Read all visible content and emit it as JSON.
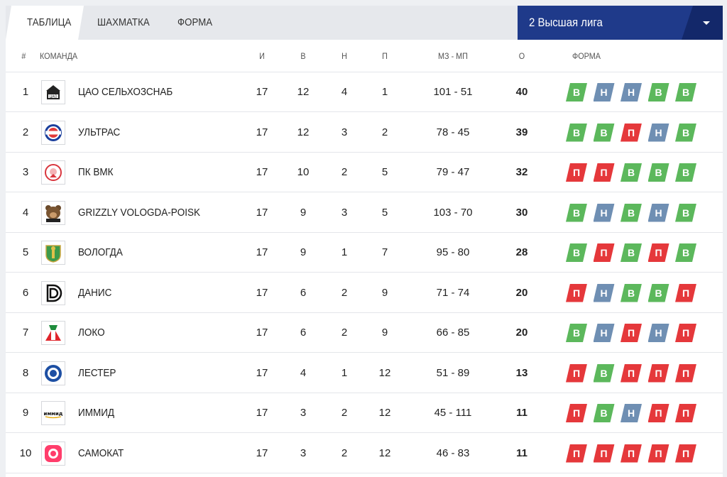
{
  "tabs": [
    "ТАБЛИЦА",
    "ШАХМАТКА",
    "ФОРМА"
  ],
  "league": {
    "label": "2 Высшая лига"
  },
  "headers": {
    "pos": "#",
    "team": "КОМАНДА",
    "i": "И",
    "w": "В",
    "d": "Н",
    "l": "П",
    "goals": "МЗ - МП",
    "pts": "О",
    "form": "ФОРМА"
  },
  "colors": {
    "win": "#5cb85c",
    "draw": "#6f8fb3",
    "loss": "#e5383b",
    "league": "#1f3a8a"
  },
  "rows": [
    {
      "pos": "1",
      "team": "ЦАО СЕЛЬХОЗСНАБ",
      "i": "17",
      "w": "12",
      "d": "4",
      "l": "1",
      "goals": "101 - 51",
      "pts": "40",
      "form": [
        "В",
        "Н",
        "Н",
        "В",
        "В"
      ],
      "logo": "cao-logo-icon"
    },
    {
      "pos": "2",
      "team": "УЛЬТРАС",
      "i": "17",
      "w": "12",
      "d": "3",
      "l": "2",
      "goals": "78 - 45",
      "pts": "39",
      "form": [
        "В",
        "В",
        "П",
        "Н",
        "В"
      ],
      "logo": "ultras-logo-icon"
    },
    {
      "pos": "3",
      "team": "ПК ВМК",
      "i": "17",
      "w": "10",
      "d": "2",
      "l": "5",
      "goals": "79 - 47",
      "pts": "32",
      "form": [
        "П",
        "П",
        "В",
        "В",
        "В"
      ],
      "logo": "pk-vmk-logo-icon"
    },
    {
      "pos": "4",
      "team": "GRIZZLY VOLOGDA-POISK",
      "i": "17",
      "w": "9",
      "d": "3",
      "l": "5",
      "goals": "103 - 70",
      "pts": "30",
      "form": [
        "В",
        "Н",
        "В",
        "Н",
        "В"
      ],
      "logo": "grizzly-logo-icon"
    },
    {
      "pos": "5",
      "team": "ВОЛОГДА",
      "i": "17",
      "w": "9",
      "d": "1",
      "l": "7",
      "goals": "95 - 80",
      "pts": "28",
      "form": [
        "В",
        "П",
        "В",
        "П",
        "В"
      ],
      "logo": "vologda-logo-icon"
    },
    {
      "pos": "6",
      "team": "ДАНИС",
      "i": "17",
      "w": "6",
      "d": "2",
      "l": "9",
      "goals": "71 - 74",
      "pts": "20",
      "form": [
        "П",
        "Н",
        "В",
        "В",
        "П"
      ],
      "logo": "danis-logo-icon"
    },
    {
      "pos": "7",
      "team": "ЛОКО",
      "i": "17",
      "w": "6",
      "d": "2",
      "l": "9",
      "goals": "66 - 85",
      "pts": "20",
      "form": [
        "В",
        "Н",
        "П",
        "Н",
        "П"
      ],
      "logo": "loko-logo-icon"
    },
    {
      "pos": "8",
      "team": "ЛЕСТЕР",
      "i": "17",
      "w": "4",
      "d": "1",
      "l": "12",
      "goals": "51 - 89",
      "pts": "13",
      "form": [
        "П",
        "В",
        "П",
        "П",
        "П"
      ],
      "logo": "lester-logo-icon"
    },
    {
      "pos": "9",
      "team": "ИММИД",
      "i": "17",
      "w": "3",
      "d": "2",
      "l": "12",
      "goals": "45 - 111",
      "pts": "11",
      "form": [
        "П",
        "В",
        "Н",
        "П",
        "П"
      ],
      "logo": "immid-logo-icon"
    },
    {
      "pos": "10",
      "team": "САМОКАТ",
      "i": "17",
      "w": "3",
      "d": "2",
      "l": "12",
      "goals": "46 - 83",
      "pts": "11",
      "form": [
        "П",
        "П",
        "П",
        "П",
        "П"
      ],
      "logo": "samokat-logo-icon"
    }
  ]
}
